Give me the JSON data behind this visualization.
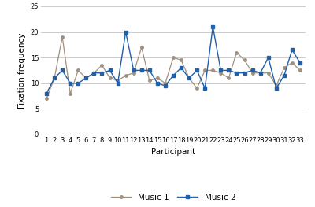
{
  "participants": [
    1,
    2,
    3,
    4,
    5,
    6,
    7,
    8,
    9,
    10,
    11,
    12,
    13,
    14,
    15,
    16,
    17,
    18,
    19,
    20,
    21,
    22,
    23,
    24,
    25,
    26,
    27,
    28,
    29,
    30,
    31,
    32,
    33
  ],
  "music1": [
    7,
    11,
    19,
    8,
    12.5,
    11,
    12,
    13.5,
    11,
    10.5,
    11.5,
    12,
    17,
    10.5,
    11,
    10,
    15,
    14.5,
    11,
    9,
    12.5,
    12.5,
    12,
    11,
    16,
    14.5,
    12,
    12,
    12,
    9.5,
    13,
    14,
    12.5
  ],
  "music2": [
    8,
    11,
    12.5,
    10,
    10,
    11,
    12,
    12,
    12.5,
    10,
    20,
    12.5,
    12.5,
    12.5,
    10,
    9.5,
    11.5,
    13,
    11,
    12.5,
    9,
    21,
    12.5,
    12.5,
    12,
    12,
    12.5,
    12,
    15,
    9,
    11.5,
    16.5,
    14
  ],
  "music1_color": "#a09080",
  "music2_color": "#2060a8",
  "xlabel": "Participant",
  "ylabel": "Fixation frequency",
  "ylim": [
    0,
    25
  ],
  "yticks": [
    0,
    5,
    10,
    15,
    20,
    25
  ],
  "xtick_labels": [
    "1",
    "2",
    "3",
    "4",
    "5",
    "6",
    "7",
    "8",
    "9",
    "10",
    "11",
    "12",
    "13",
    "14",
    "15",
    "16",
    "17",
    "18",
    "19",
    "20",
    "21",
    "22",
    "23",
    "24",
    "25",
    "26",
    "27",
    "28",
    "29",
    "30",
    "31",
    "32",
    "33"
  ],
  "legend_labels": [
    "Music 1",
    "Music 2"
  ],
  "grid_color": "#cccccc",
  "bg_color": "#ffffff",
  "label_fontsize": 7.5,
  "tick_fontsize": 6,
  "legend_fontsize": 7.5
}
